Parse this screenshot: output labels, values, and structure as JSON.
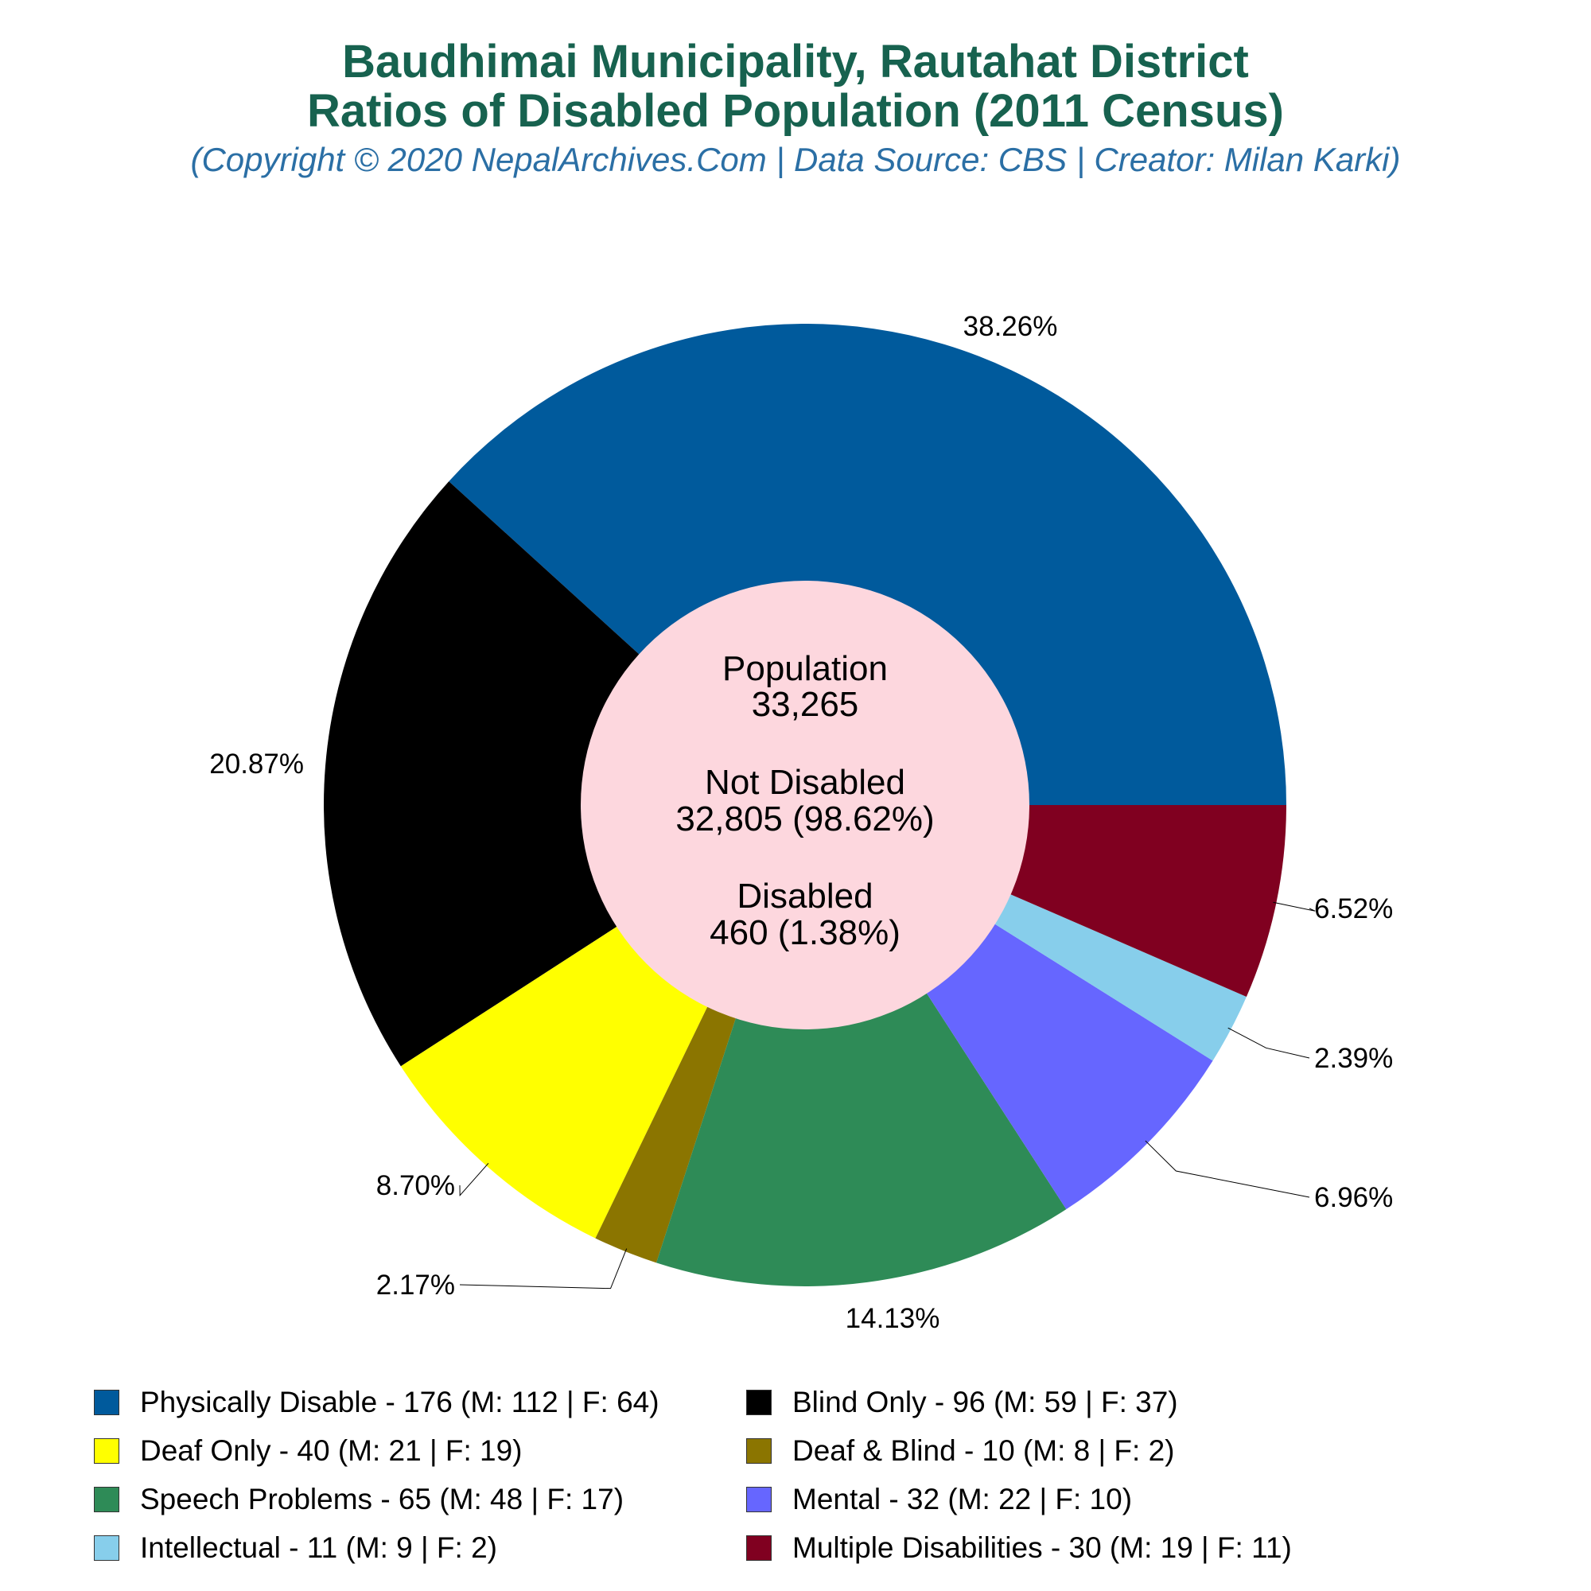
{
  "header": {
    "title_line1": "Baudhimai Municipality, Rautahat District",
    "title_line2": "Ratios of Disabled Population (2011 Census)",
    "subtitle": "(Copyright © 2020 NepalArchives.Com | Data Source: CBS | Creator: Milan Karki)"
  },
  "center": {
    "population_label": "Population",
    "population_value": "33,265",
    "not_disabled_label": "Not Disabled",
    "not_disabled_value": "32,805 (98.62%)",
    "disabled_label": "Disabled",
    "disabled_value": "460 (1.38%)"
  },
  "chart_data": {
    "type": "pie",
    "donut": true,
    "start": "3 o'clock, counter-clockwise",
    "categories": [
      "Physically Disable",
      "Blind Only",
      "Deaf Only",
      "Deaf & Blind",
      "Speech Problems",
      "Mental",
      "Intellectual",
      "Multiple Disabilities"
    ],
    "values": [
      176,
      96,
      40,
      10,
      65,
      32,
      11,
      30
    ],
    "percent_labels": [
      "38.26%",
      "20.87%",
      "8.70%",
      "2.17%",
      "14.13%",
      "6.96%",
      "2.39%",
      "6.52%"
    ],
    "colors": [
      "#005a9c",
      "#000000",
      "#ffff00",
      "#8b7500",
      "#2e8b57",
      "#6666ff",
      "#87ceeb",
      "#800020"
    ],
    "center_color": "#fdd7de",
    "legend_placement": "bottom",
    "legend_labels": [
      "Physically Disable - 176 (M: 112 | F: 64)",
      "Blind Only - 96 (M: 59 | F: 37)",
      "Deaf Only - 40 (M: 21 | F: 19)",
      "Deaf & Blind - 10 (M: 8 | F: 2)",
      "Speech Problems - 65 (M: 48 | F: 17)",
      "Mental - 32 (M: 22 | F: 10)",
      "Intellectual - 11 (M: 9 | F: 2)",
      "Multiple Disabilities - 30 (M: 19 | F: 11)"
    ]
  }
}
